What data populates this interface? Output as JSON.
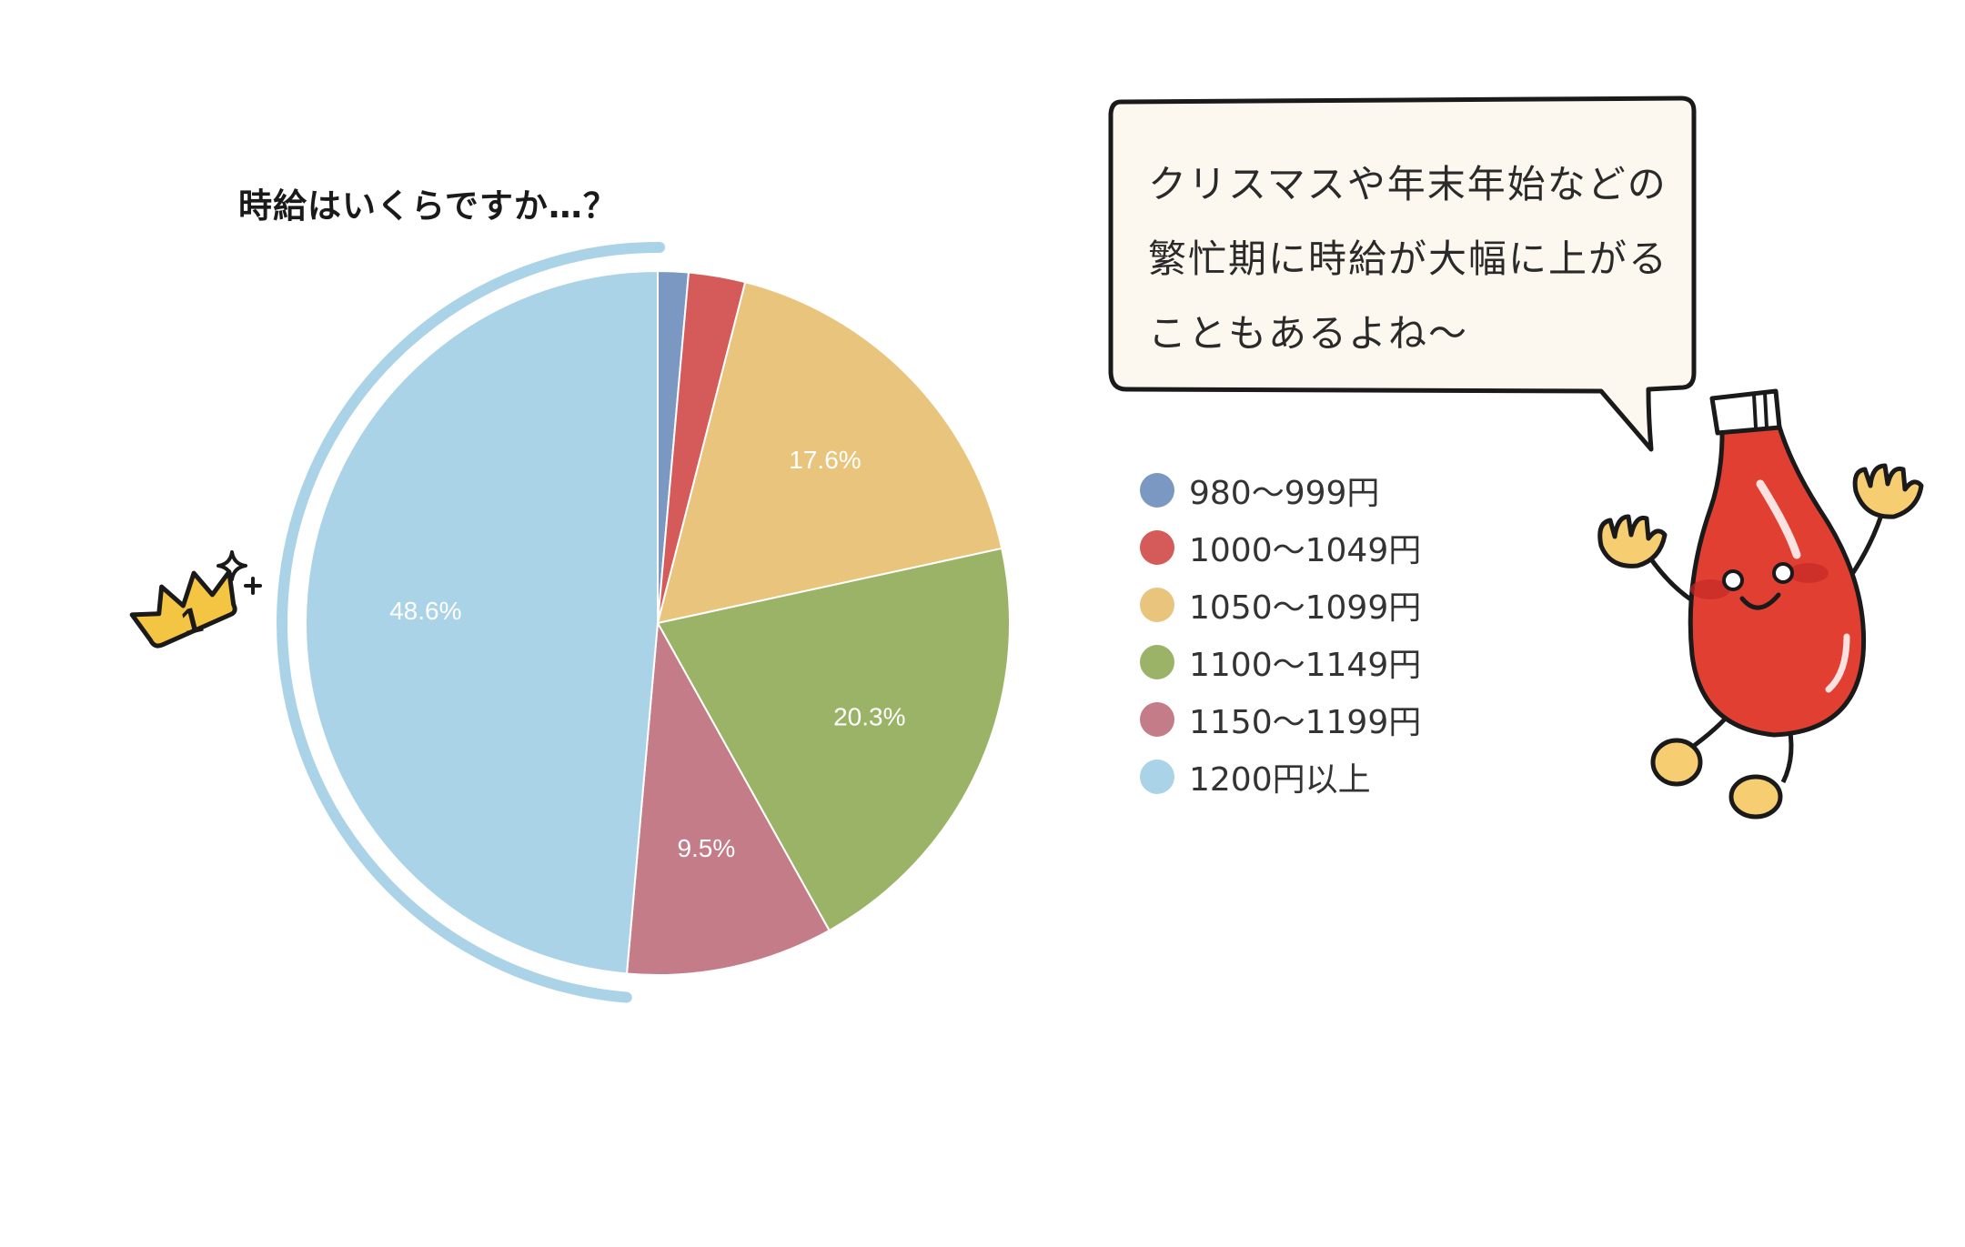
{
  "chart_data": {
    "type": "pie",
    "title": "時給はいくらですか…？",
    "categories": [
      "980〜999円",
      "1000〜1049円",
      "1050〜1099円",
      "1100〜1149円",
      "1150〜1199円",
      "1200円以上"
    ],
    "values": [
      1.4,
      2.6,
      17.6,
      20.3,
      9.5,
      48.6
    ],
    "data_labels": [
      "",
      "",
      "17.6%",
      "20.3%",
      "9.5%",
      "48.6%"
    ],
    "colors": [
      "#7b98c2",
      "#d55b5b",
      "#e8c47d",
      "#9bb366",
      "#c47c89",
      "#abd3e8"
    ],
    "legend_position": "right"
  },
  "speech_bubble": {
    "lines": [
      "クリスマスや年末年始などの",
      "繁忙期に時給が大幅に上がる",
      "こともあるよね〜"
    ]
  },
  "decorations": {
    "crown_number": "1",
    "crown_icon": "crown-icon",
    "sparkle_icon": "sparkle-icon",
    "mascot_icon": "ketchup-mascot-icon"
  },
  "colors": {
    "arc_highlight": "#abd3e8",
    "crown_fill": "#f4c542",
    "mascot_red": "#e23f33",
    "mascot_cap": "#ffffff",
    "bubble_fill": "#fdf8ef"
  }
}
